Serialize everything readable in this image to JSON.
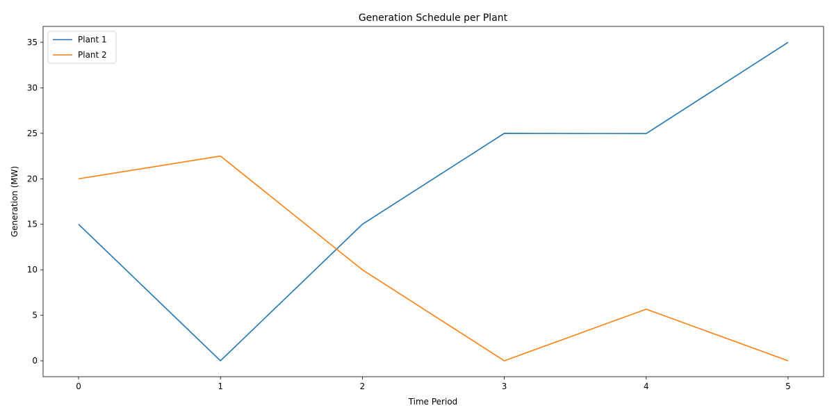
{
  "chart_data": {
    "type": "line",
    "title": "Generation Schedule per Plant",
    "xlabel": "Time Period",
    "ylabel": "Generation (MW)",
    "x": [
      0,
      1,
      2,
      3,
      4,
      5
    ],
    "xticks": [
      "0",
      "1",
      "2",
      "3",
      "4",
      "5"
    ],
    "yticks": [
      "0",
      "5",
      "10",
      "15",
      "20",
      "25",
      "30",
      "35"
    ],
    "xlim": [
      -0.25,
      5.25
    ],
    "ylim": [
      -1.75,
      36.75
    ],
    "grid": false,
    "legend_position": "top-left",
    "series": [
      {
        "name": "Plant 1",
        "color": "#1f77b4",
        "values": [
          15,
          0,
          15,
          25,
          24.97,
          35
        ]
      },
      {
        "name": "Plant 2",
        "color": "#ff7f0e",
        "values": [
          20,
          22.5,
          10,
          0,
          5.67,
          0
        ]
      }
    ]
  }
}
